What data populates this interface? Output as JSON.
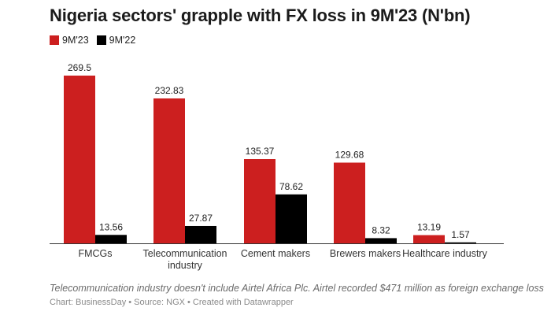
{
  "chart_data": {
    "type": "bar",
    "title": "Nigeria sectors' grapple with FX loss in 9M'23 (N'bn)",
    "categories": [
      "FMCGs",
      "Telecommunication industry",
      "Cement makers",
      "Brewers makers",
      "Healthcare industry"
    ],
    "category_lines": [
      [
        "FMCGs"
      ],
      [
        "Telecommunication",
        "industry"
      ],
      [
        "Cement makers"
      ],
      [
        "Brewers makers"
      ],
      [
        "Healthcare industry"
      ]
    ],
    "series": [
      {
        "name": "9M'23",
        "color": "#cc1f1f",
        "values": [
          269.5,
          232.83,
          135.37,
          129.68,
          13.19
        ],
        "labels": [
          "269.5",
          "232.83",
          "135.37",
          "129.68",
          "13.19"
        ]
      },
      {
        "name": "9M'22",
        "color": "#000000",
        "values": [
          13.56,
          27.87,
          78.62,
          8.32,
          1.57
        ],
        "labels": [
          "13.56",
          "27.87",
          "78.62",
          "8.32",
          "1.57"
        ]
      }
    ],
    "xlabel": "",
    "ylabel": "",
    "ylim": [
      0,
      269.5
    ],
    "grid": false,
    "legend_position": "top-left"
  },
  "note": "Telecommunication industry doesn't include Airtel Africa Plc. Airtel recorded $471 million as foreign exchange loss",
  "source": "Chart: BusinessDay • Source: NGX • Created with Datawrapper"
}
